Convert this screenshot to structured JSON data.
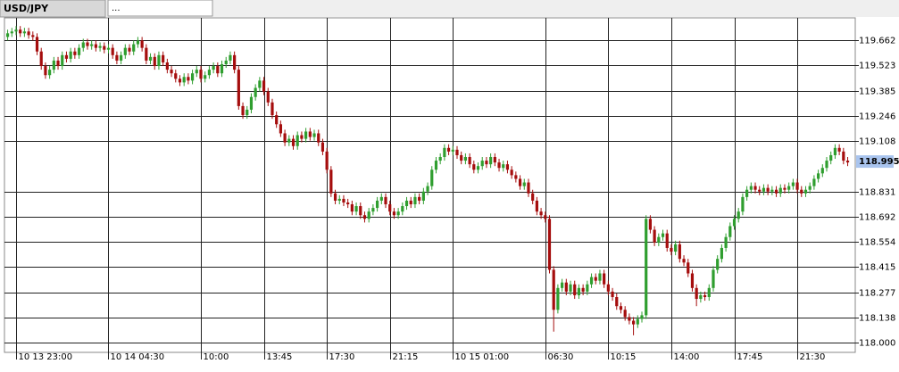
{
  "tabs": {
    "symbol": "USD/JPY",
    "second": "..."
  },
  "chart_data": {
    "type": "candlestick",
    "open": [
      119.68,
      119.7,
      119.71,
      119.72,
      119.7,
      119.71,
      119.69,
      119.68,
      119.6,
      119.52,
      119.47,
      119.5,
      119.55,
      119.52,
      119.58,
      119.56,
      119.6,
      119.58,
      119.62,
      119.65,
      119.63,
      119.64,
      119.62,
      119.63,
      119.61,
      119.62,
      119.58,
      119.55,
      119.58,
      119.62,
      119.6,
      119.64,
      119.66,
      119.62,
      119.55,
      119.57,
      119.52,
      119.58,
      119.54,
      119.5,
      119.48,
      119.45,
      119.43,
      119.46,
      119.44,
      119.48,
      119.5,
      119.45,
      119.47,
      119.5,
      119.52,
      119.48,
      119.53,
      119.55,
      119.58,
      119.5,
      119.3,
      119.25,
      119.28,
      119.35,
      119.4,
      119.44,
      119.38,
      119.32,
      119.25,
      119.2,
      119.15,
      119.1,
      119.12,
      119.08,
      119.14,
      119.12,
      119.16,
      119.13,
      119.15,
      119.1,
      119.05,
      118.95,
      118.82,
      118.78,
      118.79,
      118.77,
      118.76,
      118.72,
      118.75,
      118.7,
      118.68,
      118.72,
      118.74,
      118.78,
      118.8,
      118.76,
      118.72,
      118.7,
      118.72,
      118.75,
      118.78,
      118.76,
      118.8,
      118.78,
      118.83,
      118.86,
      118.95,
      119.0,
      119.02,
      119.07,
      119.05,
      119.06,
      119.03,
      119.0,
      119.02,
      118.98,
      118.95,
      118.97,
      119.0,
      118.98,
      119.02,
      118.99,
      118.96,
      118.98,
      118.95,
      118.92,
      118.9,
      118.86,
      118.88,
      118.82,
      118.78,
      118.72,
      118.7,
      118.68,
      118.4,
      118.18,
      118.3,
      118.33,
      118.28,
      118.32,
      118.26,
      118.3,
      118.28,
      118.32,
      118.36,
      118.34,
      118.38,
      118.32,
      118.28,
      118.25,
      118.2,
      118.18,
      118.14,
      118.12,
      118.1,
      118.13,
      118.15,
      118.68,
      118.62,
      118.55,
      118.58,
      118.6,
      118.52,
      118.5,
      118.54,
      118.46,
      118.44,
      118.38,
      118.3,
      118.24,
      118.26,
      118.25,
      118.3,
      118.4,
      118.46,
      118.52,
      118.58,
      118.64,
      118.68,
      118.72,
      118.8,
      118.84,
      118.86,
      118.84,
      118.83,
      118.85,
      118.83,
      118.84,
      118.82,
      118.85,
      118.84,
      118.86,
      118.88,
      118.84,
      118.82,
      118.84,
      118.86,
      118.9,
      118.93,
      118.96,
      119.0,
      119.03,
      119.07,
      119.05,
      119.0
    ],
    "high": [
      119.72,
      119.73,
      119.74,
      119.74,
      119.73,
      119.73,
      119.71,
      119.7,
      119.62,
      119.54,
      119.52,
      119.57,
      119.57,
      119.6,
      119.6,
      119.62,
      119.62,
      119.64,
      119.67,
      119.67,
      119.66,
      119.66,
      119.65,
      119.65,
      119.64,
      119.64,
      119.6,
      119.6,
      119.64,
      119.64,
      119.66,
      119.68,
      119.68,
      119.64,
      119.59,
      119.59,
      119.6,
      119.6,
      119.56,
      119.52,
      119.5,
      119.47,
      119.48,
      119.48,
      119.5,
      119.52,
      119.52,
      119.49,
      119.52,
      119.54,
      119.54,
      119.55,
      119.57,
      119.6,
      119.6,
      119.52,
      119.32,
      119.3,
      119.37,
      119.42,
      119.46,
      119.46,
      119.4,
      119.34,
      119.27,
      119.22,
      119.17,
      119.14,
      119.14,
      119.16,
      119.16,
      119.18,
      119.18,
      119.17,
      119.17,
      119.12,
      119.07,
      118.97,
      118.84,
      118.81,
      118.81,
      118.79,
      118.78,
      118.77,
      118.77,
      118.72,
      118.74,
      118.76,
      118.8,
      118.82,
      118.82,
      118.78,
      118.74,
      118.74,
      118.77,
      118.8,
      118.8,
      118.82,
      118.82,
      118.85,
      118.88,
      118.97,
      119.02,
      119.04,
      119.09,
      119.09,
      119.08,
      119.08,
      119.05,
      119.04,
      119.04,
      119.0,
      118.99,
      119.02,
      119.02,
      119.04,
      119.04,
      119.01,
      119.0,
      119.0,
      118.97,
      118.94,
      118.92,
      118.9,
      118.9,
      118.84,
      118.8,
      118.74,
      118.72,
      118.7,
      118.42,
      118.32,
      118.35,
      118.35,
      118.34,
      118.34,
      118.32,
      118.32,
      118.34,
      118.38,
      118.38,
      118.4,
      118.4,
      118.34,
      118.3,
      118.27,
      118.22,
      118.2,
      118.16,
      118.14,
      118.15,
      118.17,
      118.7,
      118.7,
      118.64,
      118.6,
      118.62,
      118.62,
      118.54,
      118.56,
      118.56,
      118.48,
      118.46,
      118.4,
      118.32,
      118.28,
      118.28,
      118.32,
      118.42,
      118.48,
      118.54,
      118.6,
      118.66,
      118.7,
      118.74,
      118.82,
      118.86,
      118.88,
      118.88,
      118.86,
      118.87,
      118.87,
      118.86,
      118.86,
      118.87,
      118.87,
      118.88,
      118.9,
      118.9,
      118.86,
      118.86,
      118.88,
      118.92,
      118.95,
      118.98,
      119.02,
      119.05,
      119.09,
      119.09,
      119.07,
      119.02
    ],
    "low": [
      119.66,
      119.68,
      119.69,
      119.68,
      119.68,
      119.67,
      119.66,
      119.58,
      119.5,
      119.45,
      119.45,
      119.48,
      119.5,
      119.5,
      119.54,
      119.54,
      119.56,
      119.56,
      119.6,
      119.61,
      119.61,
      119.6,
      119.6,
      119.59,
      119.59,
      119.56,
      119.53,
      119.53,
      119.56,
      119.58,
      119.58,
      119.62,
      119.6,
      119.53,
      119.53,
      119.5,
      119.5,
      119.52,
      119.48,
      119.46,
      119.43,
      119.41,
      119.41,
      119.42,
      119.42,
      119.46,
      119.43,
      119.43,
      119.45,
      119.48,
      119.46,
      119.46,
      119.51,
      119.53,
      119.48,
      119.28,
      119.23,
      119.23,
      119.26,
      119.33,
      119.38,
      119.36,
      119.3,
      119.23,
      119.18,
      119.13,
      119.08,
      119.08,
      119.06,
      119.06,
      119.1,
      119.1,
      119.11,
      119.11,
      119.08,
      119.03,
      118.93,
      118.8,
      118.76,
      118.76,
      118.75,
      118.74,
      118.7,
      118.7,
      118.68,
      118.66,
      118.66,
      118.7,
      118.72,
      118.76,
      118.74,
      118.7,
      118.68,
      118.68,
      118.7,
      118.73,
      118.74,
      118.74,
      118.76,
      118.76,
      118.81,
      118.84,
      118.93,
      118.98,
      119.0,
      119.03,
      119.03,
      119.01,
      118.98,
      118.98,
      118.96,
      118.93,
      118.93,
      118.95,
      118.96,
      118.96,
      118.97,
      118.94,
      118.94,
      118.93,
      118.9,
      118.88,
      118.84,
      118.84,
      118.8,
      118.76,
      118.7,
      118.68,
      118.66,
      118.38,
      118.06,
      118.16,
      118.28,
      118.26,
      118.26,
      118.24,
      118.24,
      118.26,
      118.26,
      118.3,
      118.32,
      118.32,
      118.3,
      118.26,
      118.23,
      118.18,
      118.16,
      118.12,
      118.1,
      118.04,
      118.08,
      118.11,
      118.13,
      118.6,
      118.53,
      118.53,
      118.56,
      118.5,
      118.48,
      118.48,
      118.44,
      118.42,
      118.36,
      118.28,
      118.2,
      118.22,
      118.23,
      118.23,
      118.28,
      118.38,
      118.44,
      118.5,
      118.56,
      118.62,
      118.66,
      118.7,
      118.78,
      118.82,
      118.82,
      118.81,
      118.81,
      118.81,
      118.81,
      118.8,
      118.8,
      118.82,
      118.82,
      118.84,
      118.82,
      118.8,
      118.8,
      118.82,
      118.84,
      118.88,
      118.91,
      118.94,
      118.98,
      119.01,
      119.03,
      118.98,
      118.97
    ],
    "close": [
      119.7,
      119.71,
      119.72,
      119.7,
      119.71,
      119.69,
      119.68,
      119.6,
      119.52,
      119.47,
      119.5,
      119.55,
      119.52,
      119.58,
      119.56,
      119.6,
      119.58,
      119.62,
      119.65,
      119.63,
      119.64,
      119.62,
      119.63,
      119.61,
      119.62,
      119.58,
      119.55,
      119.58,
      119.62,
      119.6,
      119.64,
      119.66,
      119.62,
      119.55,
      119.57,
      119.52,
      119.58,
      119.54,
      119.5,
      119.48,
      119.45,
      119.43,
      119.46,
      119.44,
      119.48,
      119.5,
      119.45,
      119.47,
      119.5,
      119.52,
      119.48,
      119.53,
      119.55,
      119.58,
      119.5,
      119.3,
      119.25,
      119.28,
      119.35,
      119.4,
      119.44,
      119.38,
      119.32,
      119.25,
      119.2,
      119.15,
      119.1,
      119.12,
      119.08,
      119.14,
      119.12,
      119.16,
      119.13,
      119.15,
      119.1,
      119.05,
      118.95,
      118.82,
      118.78,
      118.79,
      118.77,
      118.76,
      118.72,
      118.75,
      118.7,
      118.68,
      118.72,
      118.74,
      118.78,
      118.8,
      118.76,
      118.72,
      118.7,
      118.72,
      118.75,
      118.78,
      118.76,
      118.8,
      118.78,
      118.83,
      118.86,
      118.95,
      119.0,
      119.02,
      119.07,
      119.05,
      119.06,
      119.03,
      119.0,
      119.02,
      118.98,
      118.95,
      118.97,
      119.0,
      118.98,
      119.02,
      118.99,
      118.96,
      118.98,
      118.95,
      118.92,
      118.9,
      118.86,
      118.88,
      118.82,
      118.78,
      118.72,
      118.7,
      118.68,
      118.4,
      118.18,
      118.3,
      118.33,
      118.28,
      118.32,
      118.26,
      118.3,
      118.28,
      118.32,
      118.36,
      118.34,
      118.38,
      118.32,
      118.28,
      118.25,
      118.2,
      118.18,
      118.14,
      118.12,
      118.1,
      118.13,
      118.15,
      118.68,
      118.62,
      118.55,
      118.58,
      118.6,
      118.52,
      118.5,
      118.54,
      118.46,
      118.44,
      118.38,
      118.3,
      118.24,
      118.26,
      118.25,
      118.3,
      118.4,
      118.46,
      118.52,
      118.58,
      118.64,
      118.68,
      118.72,
      118.8,
      118.84,
      118.86,
      118.84,
      118.83,
      118.85,
      118.83,
      118.84,
      118.82,
      118.85,
      118.84,
      118.86,
      118.88,
      118.84,
      118.82,
      118.84,
      118.86,
      118.9,
      118.93,
      118.96,
      119.0,
      119.03,
      119.07,
      119.05,
      119.0,
      118.99
    ],
    "xlim": [
      -0.76,
      201.8
    ],
    "xticks": [
      {
        "value": 2,
        "label": "10 13 23:00"
      },
      {
        "value": 24,
        "label": "10 14 04:30"
      },
      {
        "value": 46,
        "label": "10:00"
      },
      {
        "value": 61,
        "label": "13:45"
      },
      {
        "value": 76,
        "label": "17:30"
      },
      {
        "value": 91,
        "label": "21:15"
      },
      {
        "value": 106,
        "label": "10 15 01:00"
      },
      {
        "value": 128,
        "label": "06:30"
      },
      {
        "value": 143,
        "label": "10:15"
      },
      {
        "value": 158,
        "label": "14:00"
      },
      {
        "value": 173,
        "label": "17:45"
      },
      {
        "value": 188,
        "label": "21:30"
      }
    ],
    "ylim": [
      117.946,
      119.785
    ],
    "yticks": [
      119.662,
      119.523,
      119.385,
      119.246,
      119.108,
      118.831,
      118.692,
      118.554,
      118.415,
      118.277,
      118.138,
      {
        "value": 118,
        "label": "118.000"
      }
    ],
    "last_price": 118.995,
    "up_color": "#2f9e2f",
    "down_color": "#a50d0d",
    "grid": true
  }
}
